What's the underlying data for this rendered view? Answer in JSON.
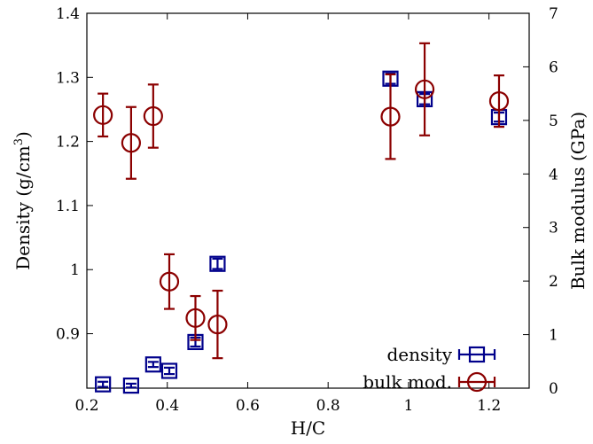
{
  "chart_data": {
    "type": "scatter",
    "xlabel": "H/C",
    "ylabel_left": "Density (g/cm",
    "ylabel_left_sup": "3",
    "ylabel_left_close": ")",
    "ylabel_right": "Bulk modulus (GPa)",
    "xlim": [
      0.2,
      1.3
    ],
    "ylim_left": [
      0.815,
      1.4
    ],
    "ylim_right": [
      0,
      7
    ],
    "x_ticks": [
      0.2,
      0.4,
      0.6,
      0.8,
      1,
      1.2
    ],
    "x_tick_labels": [
      "0.2",
      "0.4",
      "0.6",
      "0.8",
      "1",
      "1.2"
    ],
    "y_left_ticks": [
      0.9,
      1,
      1.1,
      1.2,
      1.3,
      1.4
    ],
    "y_left_tick_labels": [
      "0.9",
      "1",
      "1.1",
      "1.2",
      "1.3",
      "1.4"
    ],
    "y_right_ticks": [
      0,
      1,
      2,
      3,
      4,
      5,
      6,
      7
    ],
    "y_right_tick_labels": [
      "0",
      "1",
      "2",
      "3",
      "4",
      "5",
      "6",
      "7"
    ],
    "legend_position": "bottom-right",
    "series": [
      {
        "name": "density",
        "axis": "left",
        "marker": "square",
        "color": "#00008b",
        "points": [
          {
            "x": 0.24,
            "y": 0.821,
            "err": 0.004
          },
          {
            "x": 0.31,
            "y": 0.819,
            "err": 0.003
          },
          {
            "x": 0.365,
            "y": 0.852,
            "err": 0.004
          },
          {
            "x": 0.405,
            "y": 0.842,
            "err": 0.005
          },
          {
            "x": 0.47,
            "y": 0.887,
            "err": 0.007
          },
          {
            "x": 0.525,
            "y": 1.009,
            "err": 0.008
          },
          {
            "x": 0.955,
            "y": 1.298,
            "err": 0.008
          },
          {
            "x": 1.04,
            "y": 1.266,
            "err": 0.008
          },
          {
            "x": 1.225,
            "y": 1.238,
            "err": 0.007
          }
        ]
      },
      {
        "name": "bulk mod.",
        "axis": "right",
        "marker": "circle",
        "color": "#8b0000",
        "points": [
          {
            "x": 0.24,
            "y": 5.1,
            "err": 0.4
          },
          {
            "x": 0.31,
            "y": 4.58,
            "err": 0.67
          },
          {
            "x": 0.365,
            "y": 5.08,
            "err": 0.59
          },
          {
            "x": 0.405,
            "y": 1.99,
            "err": 0.51
          },
          {
            "x": 0.47,
            "y": 1.31,
            "err": 0.41
          },
          {
            "x": 0.525,
            "y": 1.19,
            "err": 0.63
          },
          {
            "x": 0.955,
            "y": 5.07,
            "err": 0.79
          },
          {
            "x": 1.04,
            "y": 5.58,
            "err": 0.86
          },
          {
            "x": 1.225,
            "y": 5.36,
            "err": 0.48
          }
        ]
      }
    ]
  }
}
